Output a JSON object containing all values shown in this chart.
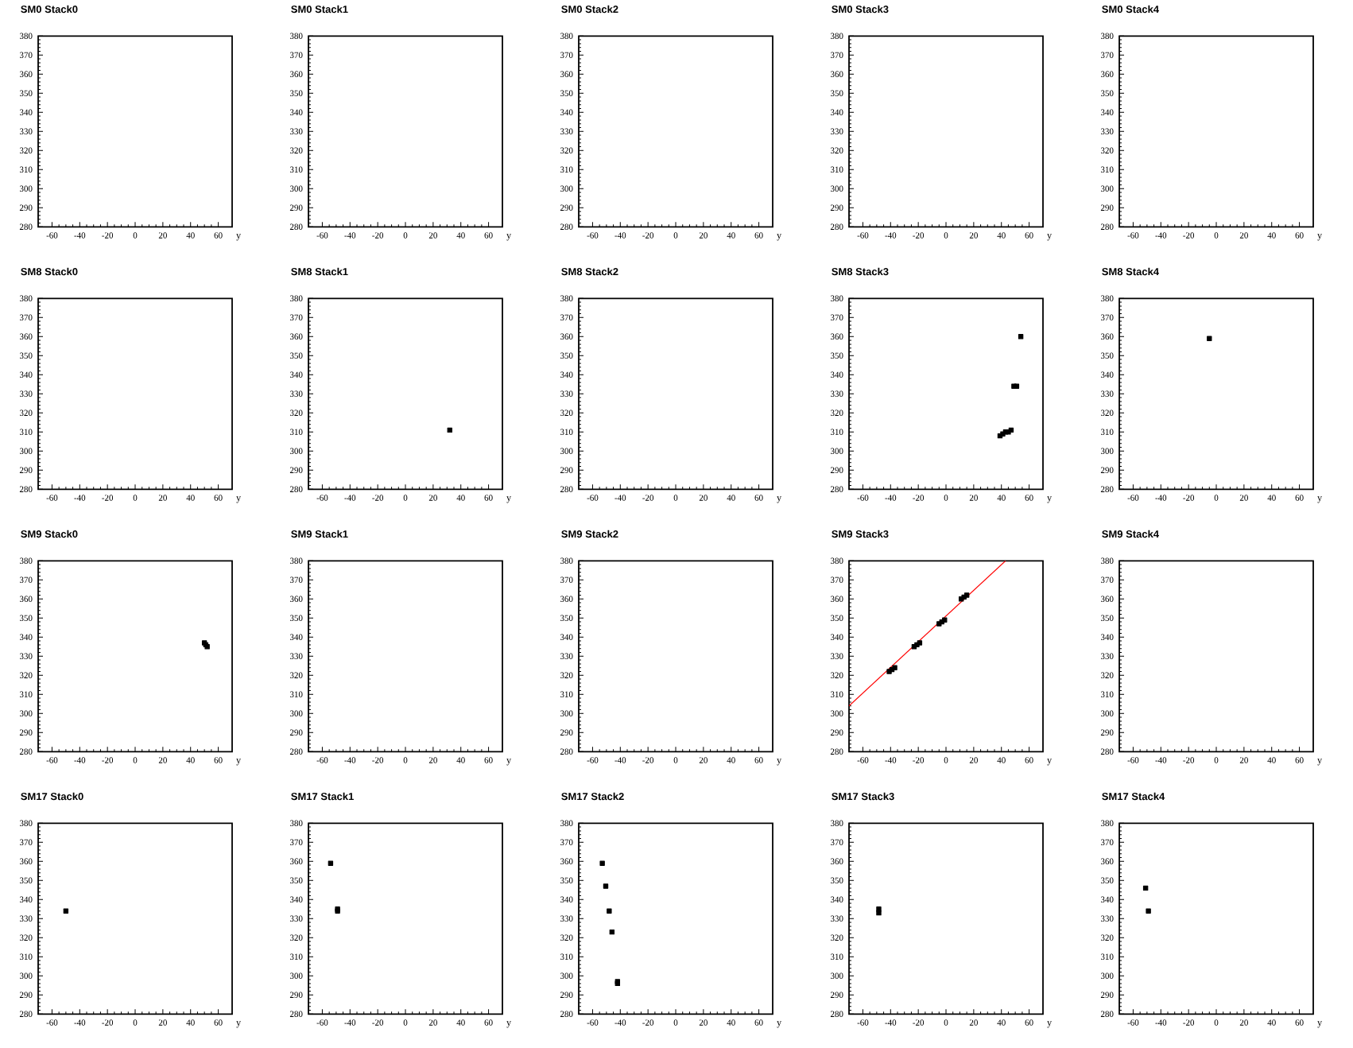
{
  "chart_data": [
    {
      "type": "scatter",
      "title": "SM0 Stack0",
      "xlabel": "y",
      "xlim": [
        -70,
        70
      ],
      "ylim": [
        280,
        380
      ],
      "xticks": [
        -60,
        -40,
        -20,
        0,
        20,
        40,
        60
      ],
      "yticks": [
        280,
        290,
        300,
        310,
        320,
        330,
        340,
        350,
        360,
        370,
        380
      ],
      "marker": "square"
    },
    {
      "type": "scatter",
      "title": "SM0 Stack1",
      "xlabel": "y",
      "xlim": [
        -70,
        70
      ],
      "ylim": [
        280,
        380
      ],
      "xticks": [
        -60,
        -40,
        -20,
        0,
        20,
        40,
        60
      ],
      "yticks": [
        280,
        290,
        300,
        310,
        320,
        330,
        340,
        350,
        360,
        370,
        380
      ],
      "marker": "square"
    },
    {
      "type": "scatter",
      "title": "SM0 Stack2",
      "xlabel": "y",
      "xlim": [
        -70,
        70
      ],
      "ylim": [
        280,
        380
      ],
      "xticks": [
        -60,
        -40,
        -20,
        0,
        20,
        40,
        60
      ],
      "yticks": [
        280,
        290,
        300,
        310,
        320,
        330,
        340,
        350,
        360,
        370,
        380
      ],
      "marker": "square"
    },
    {
      "type": "scatter",
      "title": "SM0 Stack3",
      "xlabel": "y",
      "xlim": [
        -70,
        70
      ],
      "ylim": [
        280,
        380
      ],
      "xticks": [
        -60,
        -40,
        -20,
        0,
        20,
        40,
        60
      ],
      "yticks": [
        280,
        290,
        300,
        310,
        320,
        330,
        340,
        350,
        360,
        370,
        380
      ],
      "marker": "square"
    },
    {
      "type": "scatter",
      "title": "SM0 Stack4",
      "xlabel": "y",
      "xlim": [
        -70,
        70
      ],
      "ylim": [
        280,
        380
      ],
      "xticks": [
        -60,
        -40,
        -20,
        0,
        20,
        40,
        60
      ],
      "yticks": [
        280,
        290,
        300,
        310,
        320,
        330,
        340,
        350,
        360,
        370,
        380
      ],
      "marker": "square"
    },
    {
      "type": "scatter",
      "title": "SM8 Stack0",
      "xlabel": "y",
      "xlim": [
        -70,
        70
      ],
      "ylim": [
        280,
        380
      ],
      "xticks": [
        -60,
        -40,
        -20,
        0,
        20,
        40,
        60
      ],
      "yticks": [
        280,
        290,
        300,
        310,
        320,
        330,
        340,
        350,
        360,
        370,
        380
      ],
      "marker": "square"
    },
    {
      "type": "scatter",
      "title": "SM8 Stack1",
      "xlabel": "y",
      "xlim": [
        -70,
        70
      ],
      "ylim": [
        280,
        380
      ],
      "xticks": [
        -60,
        -40,
        -20,
        0,
        20,
        40,
        60
      ],
      "yticks": [
        280,
        290,
        300,
        310,
        320,
        330,
        340,
        350,
        360,
        370,
        380
      ],
      "marker": "square",
      "series": [
        {
          "color": "#000000",
          "x": [
            32
          ],
          "values": [
            311
          ]
        }
      ]
    },
    {
      "type": "scatter",
      "title": "SM8 Stack2",
      "xlabel": "y",
      "xlim": [
        -70,
        70
      ],
      "ylim": [
        280,
        380
      ],
      "xticks": [
        -60,
        -40,
        -20,
        0,
        20,
        40,
        60
      ],
      "yticks": [
        280,
        290,
        300,
        310,
        320,
        330,
        340,
        350,
        360,
        370,
        380
      ],
      "marker": "square"
    },
    {
      "type": "scatter",
      "title": "SM8 Stack3",
      "xlabel": "y",
      "xlim": [
        -70,
        70
      ],
      "ylim": [
        280,
        380
      ],
      "xticks": [
        -60,
        -40,
        -20,
        0,
        20,
        40,
        60
      ],
      "yticks": [
        280,
        290,
        300,
        310,
        320,
        330,
        340,
        350,
        360,
        370,
        380
      ],
      "marker": "square",
      "series": [
        {
          "color": "#000000",
          "x": [
            39,
            41,
            43,
            45,
            47,
            49,
            51,
            54
          ],
          "values": [
            308,
            309,
            310,
            310,
            311,
            334,
            334,
            360
          ]
        }
      ]
    },
    {
      "type": "scatter",
      "title": "SM8 Stack4",
      "xlabel": "y",
      "xlim": [
        -70,
        70
      ],
      "ylim": [
        280,
        380
      ],
      "xticks": [
        -60,
        -40,
        -20,
        0,
        20,
        40,
        60
      ],
      "yticks": [
        280,
        290,
        300,
        310,
        320,
        330,
        340,
        350,
        360,
        370,
        380
      ],
      "marker": "square",
      "series": [
        {
          "color": "#000000",
          "x": [
            -5
          ],
          "values": [
            359
          ]
        }
      ]
    },
    {
      "type": "scatter",
      "title": "SM9 Stack0",
      "xlabel": "y",
      "xlim": [
        -70,
        70
      ],
      "ylim": [
        280,
        380
      ],
      "xticks": [
        -60,
        -40,
        -20,
        0,
        20,
        40,
        60
      ],
      "yticks": [
        280,
        290,
        300,
        310,
        320,
        330,
        340,
        350,
        360,
        370,
        380
      ],
      "marker": "square",
      "series": [
        {
          "color": "#000000",
          "x": [
            50,
            51,
            52
          ],
          "values": [
            337,
            336,
            335
          ]
        }
      ]
    },
    {
      "type": "scatter",
      "title": "SM9 Stack1",
      "xlabel": "y",
      "xlim": [
        -70,
        70
      ],
      "ylim": [
        280,
        380
      ],
      "xticks": [
        -60,
        -40,
        -20,
        0,
        20,
        40,
        60
      ],
      "yticks": [
        280,
        290,
        300,
        310,
        320,
        330,
        340,
        350,
        360,
        370,
        380
      ],
      "marker": "square"
    },
    {
      "type": "scatter",
      "title": "SM9 Stack2",
      "xlabel": "y",
      "xlim": [
        -70,
        70
      ],
      "ylim": [
        280,
        380
      ],
      "xticks": [
        -60,
        -40,
        -20,
        0,
        20,
        40,
        60
      ],
      "yticks": [
        280,
        290,
        300,
        310,
        320,
        330,
        340,
        350,
        360,
        370,
        380
      ],
      "marker": "square"
    },
    {
      "type": "scatter",
      "title": "SM9 Stack3",
      "xlabel": "y",
      "xlim": [
        -70,
        70
      ],
      "ylim": [
        280,
        380
      ],
      "xticks": [
        -60,
        -40,
        -20,
        0,
        20,
        40,
        60
      ],
      "yticks": [
        280,
        290,
        300,
        310,
        320,
        330,
        340,
        350,
        360,
        370,
        380
      ],
      "marker": "square",
      "series": [
        {
          "color": "#000000",
          "x": [
            -41,
            -39,
            -37,
            -23,
            -21,
            -19,
            -5,
            -3,
            -1,
            11,
            13,
            15
          ],
          "values": [
            322,
            323,
            324,
            335,
            336,
            337,
            347,
            348,
            349,
            360,
            361,
            362
          ]
        },
        {
          "type": "line",
          "color": "#ff0000",
          "marker": "none",
          "x": [
            -70,
            43
          ],
          "values": [
            304,
            380
          ]
        }
      ]
    },
    {
      "type": "scatter",
      "title": "SM9 Stack4",
      "xlabel": "y",
      "xlim": [
        -70,
        70
      ],
      "ylim": [
        280,
        380
      ],
      "xticks": [
        -60,
        -40,
        -20,
        0,
        20,
        40,
        60
      ],
      "yticks": [
        280,
        290,
        300,
        310,
        320,
        330,
        340,
        350,
        360,
        370,
        380
      ],
      "marker": "square"
    },
    {
      "type": "scatter",
      "title": "SM17 Stack0",
      "xlabel": "y",
      "xlim": [
        -70,
        70
      ],
      "ylim": [
        280,
        380
      ],
      "xticks": [
        -60,
        -40,
        -20,
        0,
        20,
        40,
        60
      ],
      "yticks": [
        280,
        290,
        300,
        310,
        320,
        330,
        340,
        350,
        360,
        370,
        380
      ],
      "marker": "square",
      "series": [
        {
          "color": "#000000",
          "x": [
            -50
          ],
          "values": [
            334
          ]
        }
      ]
    },
    {
      "type": "scatter",
      "title": "SM17 Stack1",
      "xlabel": "y",
      "xlim": [
        -70,
        70
      ],
      "ylim": [
        280,
        380
      ],
      "xticks": [
        -60,
        -40,
        -20,
        0,
        20,
        40,
        60
      ],
      "yticks": [
        280,
        290,
        300,
        310,
        320,
        330,
        340,
        350,
        360,
        370,
        380
      ],
      "marker": "square",
      "series": [
        {
          "color": "#000000",
          "x": [
            -54,
            -49,
            -49
          ],
          "values": [
            359,
            335,
            334
          ]
        }
      ]
    },
    {
      "type": "scatter",
      "title": "SM17 Stack2",
      "xlabel": "y",
      "xlim": [
        -70,
        70
      ],
      "ylim": [
        280,
        380
      ],
      "xticks": [
        -60,
        -40,
        -20,
        0,
        20,
        40,
        60
      ],
      "yticks": [
        280,
        290,
        300,
        310,
        320,
        330,
        340,
        350,
        360,
        370,
        380
      ],
      "marker": "square",
      "series": [
        {
          "color": "#000000",
          "x": [
            -53,
            -50.5,
            -48,
            -46,
            -42,
            -42
          ],
          "values": [
            359,
            347,
            334,
            323,
            297,
            296
          ]
        }
      ]
    },
    {
      "type": "scatter",
      "title": "SM17 Stack3",
      "xlabel": "y",
      "xlim": [
        -70,
        70
      ],
      "ylim": [
        280,
        380
      ],
      "xticks": [
        -60,
        -40,
        -20,
        0,
        20,
        40,
        60
      ],
      "yticks": [
        280,
        290,
        300,
        310,
        320,
        330,
        340,
        350,
        360,
        370,
        380
      ],
      "marker": "square",
      "series": [
        {
          "color": "#000000",
          "x": [
            -48.5,
            -48.5
          ],
          "values": [
            335,
            333
          ]
        }
      ]
    },
    {
      "type": "scatter",
      "title": "SM17 Stack4",
      "xlabel": "y",
      "xlim": [
        -70,
        70
      ],
      "ylim": [
        280,
        380
      ],
      "xticks": [
        -60,
        -40,
        -20,
        0,
        20,
        40,
        60
      ],
      "yticks": [
        280,
        290,
        300,
        310,
        320,
        330,
        340,
        350,
        360,
        370,
        380
      ],
      "marker": "square",
      "series": [
        {
          "color": "#000000",
          "x": [
            -51,
            -49
          ],
          "values": [
            346,
            334
          ]
        }
      ]
    }
  ]
}
